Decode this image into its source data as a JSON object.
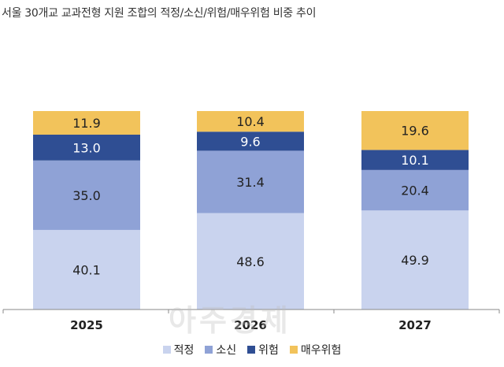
{
  "title": "서울 30개교 교과전형 지원 조합의 적정/소신/위험/매우위험 비중 추이",
  "watermark": "아주경제",
  "colors": {
    "적정": "#c9d3ee",
    "소신": "#8fa2d6",
    "위험": "#2f4e93",
    "매우위험": "#f2c35b",
    "axis": "#888888"
  },
  "chart_data": {
    "type": "bar",
    "stacked": true,
    "categories": [
      "2025",
      "2026",
      "2027"
    ],
    "series": [
      {
        "name": "적정",
        "values": [
          40.1,
          48.6,
          49.9
        ]
      },
      {
        "name": "소신",
        "values": [
          35.0,
          31.4,
          20.4
        ]
      },
      {
        "name": "위험",
        "values": [
          13.0,
          9.6,
          10.1
        ]
      },
      {
        "name": "매우위험",
        "values": [
          11.9,
          10.4,
          19.6
        ]
      }
    ],
    "value_labels": [
      [
        "40.1",
        "48.6",
        "49.9"
      ],
      [
        "35.0",
        "31.4",
        "20.4"
      ],
      [
        "13.0",
        "9.6",
        "10.1"
      ],
      [
        "11.9",
        "10.4",
        "19.6"
      ]
    ],
    "ylim": [
      0,
      100
    ],
    "legend_position": "bottom",
    "grid": false
  }
}
